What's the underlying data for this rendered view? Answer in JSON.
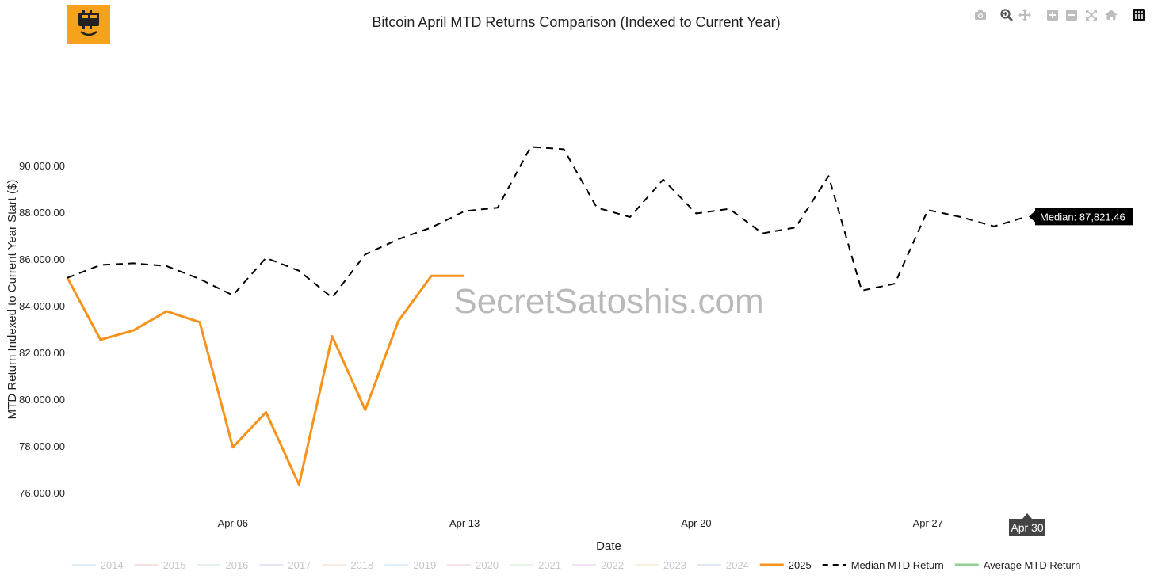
{
  "chart_data": {
    "type": "line",
    "title": "Bitcoin April MTD Returns Comparison (Indexed to Current Year)",
    "xlabel": "Date",
    "ylabel": "MTD Return Indexed to Current Year Start ($)",
    "x_range": [
      "2025-04-01",
      "2025-04-30"
    ],
    "y_range": [
      75500,
      92000
    ],
    "x_ticks": [
      {
        "date": "2025-04-06",
        "label": "Apr 06"
      },
      {
        "date": "2025-04-13",
        "label": "Apr 13"
      },
      {
        "date": "2025-04-20",
        "label": "Apr 20"
      },
      {
        "date": "2025-04-27",
        "label": "Apr 27"
      }
    ],
    "y_ticks": [
      {
        "value": 76000,
        "label": "76,000.00"
      },
      {
        "value": 78000,
        "label": "78,000.00"
      },
      {
        "value": 80000,
        "label": "80,000.00"
      },
      {
        "value": 82000,
        "label": "82,000.00"
      },
      {
        "value": 84000,
        "label": "84,000.00"
      },
      {
        "value": 86000,
        "label": "86,000.00"
      },
      {
        "value": 88000,
        "label": "88,000.00"
      },
      {
        "value": 90000,
        "label": "90,000.00"
      }
    ],
    "grid": false,
    "legend_position": "bottom",
    "legend": [
      {
        "name": "2014",
        "color": "#c9d9f2",
        "style": "solid",
        "faded": true
      },
      {
        "name": "2015",
        "color": "#f2c9c9",
        "style": "solid",
        "faded": true
      },
      {
        "name": "2016",
        "color": "#c9e6e6",
        "style": "solid",
        "faded": true
      },
      {
        "name": "2017",
        "color": "#d9c9f2",
        "style": "solid",
        "faded": true
      },
      {
        "name": "2018",
        "color": "#f2dcc9",
        "style": "solid",
        "faded": true
      },
      {
        "name": "2019",
        "color": "#c9e0f2",
        "style": "solid",
        "faded": true
      },
      {
        "name": "2020",
        "color": "#f2c9d9",
        "style": "solid",
        "faded": true
      },
      {
        "name": "2021",
        "color": "#d4ecd0",
        "style": "solid",
        "faded": true
      },
      {
        "name": "2022",
        "color": "#e6c9f2",
        "style": "solid",
        "faded": true
      },
      {
        "name": "2023",
        "color": "#f2e6c9",
        "style": "solid",
        "faded": true
      },
      {
        "name": "2024",
        "color": "#c9d4f2",
        "style": "solid",
        "faded": true
      },
      {
        "name": "2025",
        "color": "#f7931a",
        "style": "solid",
        "faded": false
      },
      {
        "name": "Median MTD Return",
        "color": "#000000",
        "style": "dash",
        "faded": false
      },
      {
        "name": "Average MTD Return",
        "color": "#8fcf8f",
        "style": "solid",
        "faded": false
      }
    ],
    "series": [
      {
        "name": "2025",
        "color": "#f7931a",
        "style": "solid",
        "points": [
          {
            "x": "2025-04-01",
            "y": 85200
          },
          {
            "x": "2025-04-02",
            "y": 82550
          },
          {
            "x": "2025-04-03",
            "y": 82950
          },
          {
            "x": "2025-04-04",
            "y": 83770
          },
          {
            "x": "2025-04-05",
            "y": 83300
          },
          {
            "x": "2025-04-06",
            "y": 77950
          },
          {
            "x": "2025-04-07",
            "y": 79450
          },
          {
            "x": "2025-04-08",
            "y": 76350
          },
          {
            "x": "2025-04-09",
            "y": 82700
          },
          {
            "x": "2025-04-10",
            "y": 79550
          },
          {
            "x": "2025-04-11",
            "y": 83350
          },
          {
            "x": "2025-04-12",
            "y": 85280
          },
          {
            "x": "2025-04-13",
            "y": 85280
          }
        ]
      },
      {
        "name": "Median MTD Return",
        "color": "#000000",
        "style": "dash",
        "points": [
          {
            "x": "2025-04-01",
            "y": 85200
          },
          {
            "x": "2025-04-02",
            "y": 85750
          },
          {
            "x": "2025-04-03",
            "y": 85820
          },
          {
            "x": "2025-04-04",
            "y": 85700
          },
          {
            "x": "2025-04-05",
            "y": 85150
          },
          {
            "x": "2025-04-06",
            "y": 84450
          },
          {
            "x": "2025-04-07",
            "y": 86050
          },
          {
            "x": "2025-04-08",
            "y": 85500
          },
          {
            "x": "2025-04-09",
            "y": 84350
          },
          {
            "x": "2025-04-10",
            "y": 86200
          },
          {
            "x": "2025-04-11",
            "y": 86850
          },
          {
            "x": "2025-04-12",
            "y": 87350
          },
          {
            "x": "2025-04-13",
            "y": 88050
          },
          {
            "x": "2025-04-14",
            "y": 88200
          },
          {
            "x": "2025-04-15",
            "y": 90800
          },
          {
            "x": "2025-04-16",
            "y": 90700
          },
          {
            "x": "2025-04-17",
            "y": 88200
          },
          {
            "x": "2025-04-18",
            "y": 87800
          },
          {
            "x": "2025-04-19",
            "y": 89400
          },
          {
            "x": "2025-04-20",
            "y": 87950
          },
          {
            "x": "2025-04-21",
            "y": 88150
          },
          {
            "x": "2025-04-22",
            "y": 87100
          },
          {
            "x": "2025-04-23",
            "y": 87350
          },
          {
            "x": "2025-04-24",
            "y": 89550
          },
          {
            "x": "2025-04-25",
            "y": 84650
          },
          {
            "x": "2025-04-26",
            "y": 84950
          },
          {
            "x": "2025-04-27",
            "y": 88100
          },
          {
            "x": "2025-04-28",
            "y": 87800
          },
          {
            "x": "2025-04-29",
            "y": 87400
          },
          {
            "x": "2025-04-30",
            "y": 87821.46
          }
        ]
      }
    ],
    "annotations": [
      {
        "text": "Median: 87,821.46",
        "x": "2025-04-30",
        "y": 87821.46,
        "kind": "hover-label",
        "bg": "#000000",
        "color": "#ffffff"
      },
      {
        "text": "Apr 30",
        "x": "2025-04-30",
        "kind": "x-hover-label",
        "bg": "#444444",
        "color": "#ffffff"
      }
    ],
    "watermark": "SecretSatoshis.com"
  },
  "toolbar": {
    "items": [
      {
        "name": "camera-icon",
        "label": "Download plot as png"
      },
      {
        "name": "zoom-icon",
        "label": "Zoom"
      },
      {
        "name": "pan-icon",
        "label": "Pan"
      },
      {
        "name": "zoom-in-icon",
        "label": "Zoom in"
      },
      {
        "name": "zoom-out-icon",
        "label": "Zoom out"
      },
      {
        "name": "autoscale-icon",
        "label": "Autoscale"
      },
      {
        "name": "reset-axes-icon",
        "label": "Reset axes"
      },
      {
        "name": "plotly-logo-icon",
        "label": "Produced with Plotly"
      }
    ]
  },
  "logo": {
    "name": "bitcoin-logo-icon",
    "color": "#f7a21c"
  }
}
